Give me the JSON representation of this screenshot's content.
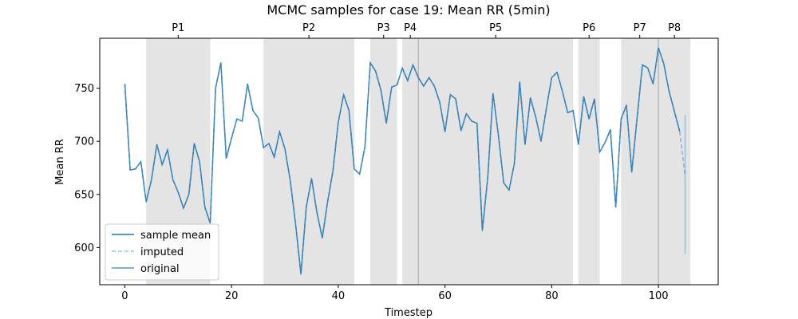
{
  "chart_data": {
    "type": "line",
    "title": "MCMC samples for case 19: Mean RR (5min)",
    "xlabel": "Timestep",
    "ylabel": "Mean RR",
    "xlim": [
      -4.7,
      111.2
    ],
    "ylim": [
      565,
      797
    ],
    "xticks": [
      0,
      20,
      40,
      60,
      80,
      100
    ],
    "yticks": [
      600,
      650,
      700,
      750
    ],
    "grid": false,
    "legend_position": "lower-left",
    "colors": {
      "series": "#1f77b4",
      "shade": "#e4e4e4",
      "vline": "#b0b0b0"
    },
    "periods": [
      {
        "label": "P1",
        "start": 4,
        "end": 16
      },
      {
        "label": "P2",
        "start": 26,
        "end": 43
      },
      {
        "label": "P3",
        "start": 46,
        "end": 51
      },
      {
        "label": "P4",
        "start": 52,
        "end": 55
      },
      {
        "label": "P5",
        "start": 55,
        "end": 84
      },
      {
        "label": "P6",
        "start": 85,
        "end": 89
      },
      {
        "label": "P7",
        "start": 93,
        "end": 100
      },
      {
        "label": "P8",
        "start": 100,
        "end": 106
      }
    ],
    "vertical_lines": [
      55,
      100
    ],
    "x": [
      0,
      1,
      2,
      3,
      4,
      5,
      6,
      7,
      8,
      9,
      10,
      11,
      12,
      13,
      14,
      15,
      16,
      17,
      18,
      19,
      20,
      21,
      22,
      23,
      24,
      25,
      26,
      27,
      28,
      29,
      30,
      31,
      32,
      33,
      34,
      35,
      36,
      37,
      38,
      39,
      40,
      41,
      42,
      43,
      44,
      45,
      46,
      47,
      48,
      49,
      50,
      51,
      52,
      53,
      54,
      55,
      56,
      57,
      58,
      59,
      60,
      61,
      62,
      63,
      64,
      65,
      66,
      67,
      68,
      69,
      70,
      71,
      72,
      73,
      74,
      75,
      76,
      77,
      78,
      79,
      80,
      81,
      82,
      83,
      84,
      85,
      86,
      87,
      88,
      89,
      90,
      91,
      92,
      93,
      94,
      95,
      96,
      97,
      98,
      99,
      100,
      101,
      102,
      103,
      104
    ],
    "series": [
      {
        "name": "original",
        "values": [
          754,
          673,
          674,
          681,
          643,
          664,
          697,
          678,
          692,
          664,
          652,
          637,
          650,
          698,
          681,
          638,
          623,
          750,
          774,
          684,
          703,
          721,
          719,
          754,
          729,
          722,
          694,
          698,
          685,
          709,
          693,
          663,
          622,
          575,
          638,
          665,
          633,
          609,
          643,
          672,
          718,
          744,
          729,
          674,
          669,
          695,
          774,
          766,
          748,
          717,
          751,
          753,
          769,
          757,
          772,
          760,
          752,
          760,
          752,
          737,
          709,
          744,
          740,
          710,
          726,
          719,
          717,
          616,
          665,
          745,
          706,
          661,
          654,
          679,
          756,
          697,
          741,
          723,
          700,
          731,
          760,
          765,
          747,
          727,
          729,
          697,
          742,
          721,
          740,
          690,
          699,
          711,
          638,
          721,
          734,
          671,
          722,
          772,
          769,
          754,
          788,
          773,
          747,
          728,
          709
        ]
      },
      {
        "name": "sample mean",
        "values": [
          754,
          673,
          674,
          681,
          643,
          664,
          697,
          678,
          692,
          664,
          652,
          637,
          650,
          698,
          681,
          638,
          623,
          750,
          774,
          684,
          703,
          721,
          719,
          754,
          729,
          722,
          694,
          698,
          685,
          709,
          693,
          663,
          622,
          575,
          638,
          665,
          633,
          609,
          643,
          672,
          718,
          744,
          729,
          674,
          669,
          695,
          774,
          766,
          748,
          717,
          751,
          753,
          769,
          757,
          772,
          760,
          752,
          760,
          752,
          737,
          709,
          744,
          740,
          710,
          726,
          719,
          717,
          616,
          665,
          745,
          706,
          661,
          654,
          679,
          756,
          697,
          741,
          723,
          700,
          731,
          760,
          765,
          747,
          727,
          729,
          697,
          742,
          721,
          740,
          690,
          699,
          711,
          638,
          721,
          734,
          671,
          722,
          772,
          769,
          754,
          788,
          773,
          747,
          728,
          709
        ]
      },
      {
        "name": "imputed",
        "values": [
          754,
          673,
          674,
          681,
          643,
          664,
          697,
          678,
          692,
          664,
          652,
          637,
          650,
          698,
          681,
          638,
          623,
          750,
          774,
          684,
          703,
          721,
          719,
          754,
          729,
          722,
          694,
          698,
          685,
          709,
          693,
          663,
          622,
          575,
          638,
          665,
          633,
          609,
          643,
          672,
          718,
          744,
          729,
          674,
          669,
          695,
          774,
          766,
          748,
          717,
          751,
          753,
          769,
          757,
          772,
          760,
          752,
          760,
          752,
          737,
          709,
          744,
          740,
          710,
          726,
          719,
          717,
          616,
          665,
          745,
          706,
          661,
          654,
          679,
          756,
          697,
          741,
          723,
          700,
          731,
          760,
          765,
          747,
          727,
          729,
          697,
          742,
          721,
          740,
          690,
          699,
          711,
          638,
          721,
          734,
          671,
          722,
          772,
          769,
          754,
          788,
          773,
          747,
          728,
          709
        ],
        "extension": {
          "x": [
            104,
            105
          ],
          "y": [
            709,
            667
          ]
        }
      }
    ],
    "final_interval": {
      "x": 105,
      "low": 594,
      "high": 725
    },
    "legend": [
      "sample mean",
      "imputed",
      "original"
    ]
  }
}
